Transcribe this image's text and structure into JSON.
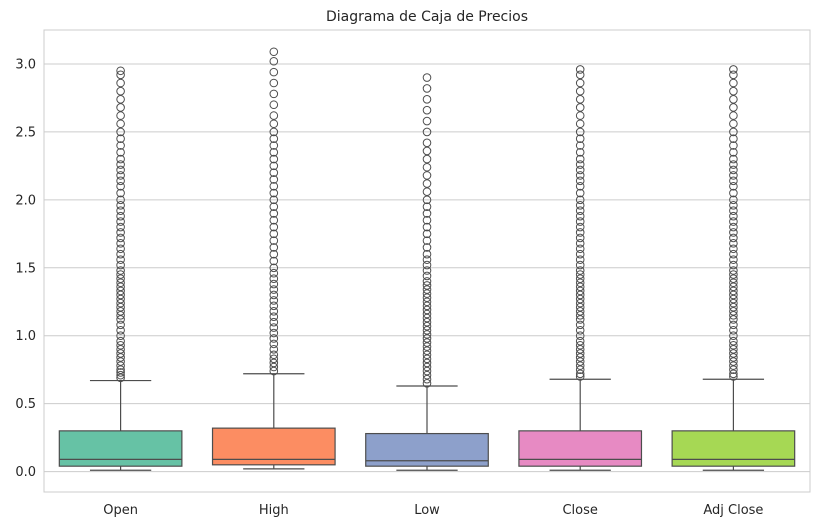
{
  "chart_data": {
    "type": "box",
    "title": "Diagrama de Caja de Precios",
    "xlabel": "",
    "ylabel": "",
    "ylim": [
      -0.15,
      3.25
    ],
    "yticks": [
      0.0,
      0.5,
      1.0,
      1.5,
      2.0,
      2.5,
      3.0
    ],
    "ytick_labels": [
      "0.0",
      "0.5",
      "1.0",
      "1.5",
      "2.0",
      "2.5",
      "3.0"
    ],
    "grid": true,
    "categories": [
      "Open",
      "High",
      "Low",
      "Close",
      "Adj Close"
    ],
    "colors": [
      "#66c2a5",
      "#fc8d62",
      "#8da0cb",
      "#e78ac3",
      "#a6d854"
    ],
    "series": [
      {
        "whisker_low": 0.01,
        "q1": 0.04,
        "median": 0.09,
        "q3": 0.3,
        "whisker_high": 0.67,
        "outliers": [
          0.69,
          0.71,
          0.73,
          0.75,
          0.78,
          0.81,
          0.84,
          0.87,
          0.9,
          0.93,
          0.96,
          1.0,
          1.04,
          1.08,
          1.12,
          1.15,
          1.18,
          1.21,
          1.24,
          1.27,
          1.3,
          1.33,
          1.36,
          1.39,
          1.42,
          1.45,
          1.48,
          1.52,
          1.56,
          1.6,
          1.64,
          1.68,
          1.72,
          1.76,
          1.8,
          1.84,
          1.88,
          1.92,
          1.96,
          2.0,
          2.05,
          2.1,
          2.14,
          2.18,
          2.22,
          2.26,
          2.3,
          2.35,
          2.4,
          2.45,
          2.5,
          2.56,
          2.62,
          2.68,
          2.74,
          2.8,
          2.86,
          2.92,
          2.95
        ]
      },
      {
        "whisker_low": 0.02,
        "q1": 0.05,
        "median": 0.09,
        "q3": 0.32,
        "whisker_high": 0.72,
        "outliers": [
          0.74,
          0.77,
          0.8,
          0.83,
          0.86,
          0.9,
          0.94,
          0.98,
          1.02,
          1.06,
          1.1,
          1.14,
          1.18,
          1.22,
          1.26,
          1.3,
          1.34,
          1.38,
          1.42,
          1.46,
          1.5,
          1.55,
          1.6,
          1.65,
          1.7,
          1.75,
          1.8,
          1.85,
          1.9,
          1.95,
          2.0,
          2.05,
          2.1,
          2.15,
          2.2,
          2.25,
          2.3,
          2.35,
          2.4,
          2.45,
          2.5,
          2.56,
          2.62,
          2.7,
          2.78,
          2.86,
          2.94,
          3.02,
          3.09
        ]
      },
      {
        "whisker_low": 0.01,
        "q1": 0.04,
        "median": 0.08,
        "q3": 0.28,
        "whisker_high": 0.63,
        "outliers": [
          0.65,
          0.68,
          0.71,
          0.74,
          0.77,
          0.8,
          0.83,
          0.86,
          0.89,
          0.92,
          0.95,
          0.98,
          1.01,
          1.04,
          1.07,
          1.1,
          1.13,
          1.16,
          1.19,
          1.22,
          1.25,
          1.28,
          1.31,
          1.34,
          1.37,
          1.4,
          1.44,
          1.48,
          1.52,
          1.56,
          1.6,
          1.65,
          1.7,
          1.75,
          1.8,
          1.85,
          1.9,
          1.95,
          2.0,
          2.06,
          2.12,
          2.18,
          2.24,
          2.3,
          2.36,
          2.42,
          2.5,
          2.58,
          2.66,
          2.74,
          2.82,
          2.9
        ]
      },
      {
        "whisker_low": 0.01,
        "q1": 0.04,
        "median": 0.09,
        "q3": 0.3,
        "whisker_high": 0.68,
        "outliers": [
          0.7,
          0.72,
          0.75,
          0.78,
          0.81,
          0.84,
          0.87,
          0.9,
          0.93,
          0.96,
          1.0,
          1.04,
          1.08,
          1.12,
          1.15,
          1.18,
          1.21,
          1.24,
          1.27,
          1.3,
          1.33,
          1.36,
          1.39,
          1.42,
          1.45,
          1.48,
          1.52,
          1.56,
          1.6,
          1.64,
          1.68,
          1.72,
          1.76,
          1.8,
          1.84,
          1.88,
          1.92,
          1.96,
          2.0,
          2.05,
          2.1,
          2.14,
          2.18,
          2.22,
          2.26,
          2.3,
          2.35,
          2.4,
          2.45,
          2.5,
          2.56,
          2.62,
          2.68,
          2.74,
          2.8,
          2.86,
          2.92,
          2.96
        ]
      },
      {
        "whisker_low": 0.01,
        "q1": 0.04,
        "median": 0.09,
        "q3": 0.3,
        "whisker_high": 0.68,
        "outliers": [
          0.7,
          0.72,
          0.75,
          0.78,
          0.81,
          0.84,
          0.87,
          0.9,
          0.93,
          0.96,
          1.0,
          1.04,
          1.08,
          1.12,
          1.15,
          1.18,
          1.21,
          1.24,
          1.27,
          1.3,
          1.33,
          1.36,
          1.39,
          1.42,
          1.45,
          1.48,
          1.52,
          1.56,
          1.6,
          1.64,
          1.68,
          1.72,
          1.76,
          1.8,
          1.84,
          1.88,
          1.92,
          1.96,
          2.0,
          2.05,
          2.1,
          2.14,
          2.18,
          2.22,
          2.26,
          2.3,
          2.35,
          2.4,
          2.45,
          2.5,
          2.56,
          2.62,
          2.68,
          2.74,
          2.8,
          2.86,
          2.92,
          2.96
        ]
      }
    ]
  }
}
